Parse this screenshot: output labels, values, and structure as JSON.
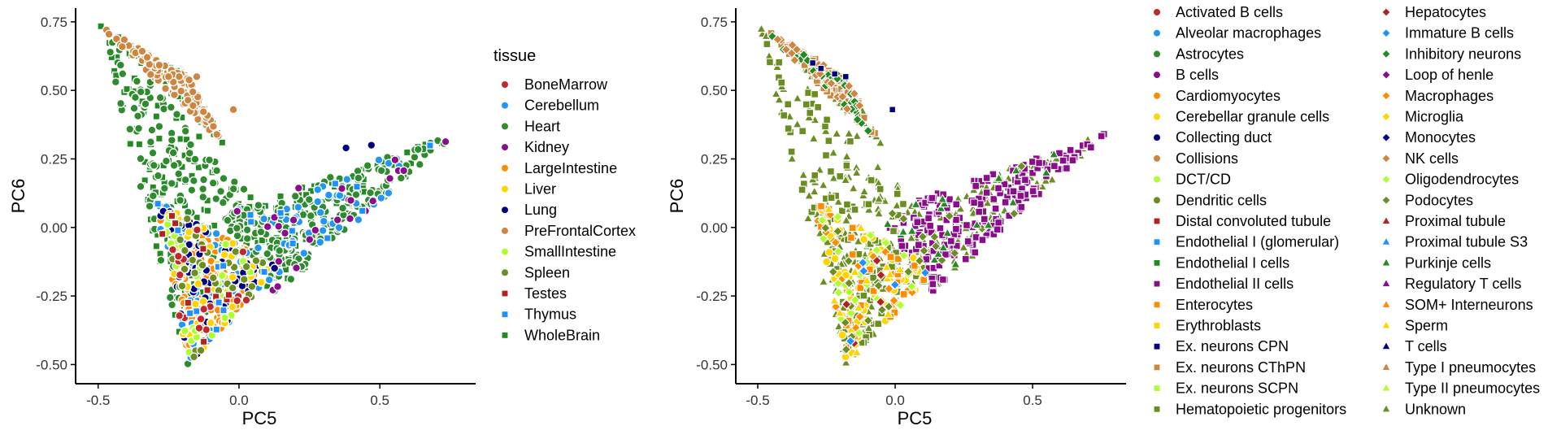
{
  "chart_data": [
    {
      "type": "scatter",
      "xlabel": "PC5",
      "ylabel": "PC6",
      "xlim": [
        -0.58,
        0.84
      ],
      "ylim": [
        -0.57,
        0.8
      ],
      "xticks": [
        "-0.5",
        "0.0",
        "0.5"
      ],
      "xtick_values": [
        -0.5,
        0.0,
        0.5
      ],
      "yticks": [
        "0.75",
        "0.50",
        "0.25",
        "0.00",
        "-0.25",
        "-0.50"
      ],
      "ytick_values": [
        0.75,
        0.5,
        0.25,
        0.0,
        -0.25,
        -0.5
      ],
      "grid": false,
      "legend_title": "tissue",
      "legend_placement": "right",
      "series": [
        {
          "name": "BoneMarrow",
          "shape": "circle",
          "color": "#C1272D"
        },
        {
          "name": "Cerebellum",
          "shape": "circle",
          "color": "#2196F3"
        },
        {
          "name": "Heart",
          "shape": "circle",
          "color": "#2E8B2E"
        },
        {
          "name": "Kidney",
          "shape": "circle",
          "color": "#8B0D8B"
        },
        {
          "name": "LargeIntestine",
          "shape": "circle",
          "color": "#FF8C00"
        },
        {
          "name": "Liver",
          "shape": "circle",
          "color": "#FFD400"
        },
        {
          "name": "Lung",
          "shape": "circle",
          "color": "#000080"
        },
        {
          "name": "PreFrontalCortex",
          "shape": "circle",
          "color": "#CD853F"
        },
        {
          "name": "SmallIntestine",
          "shape": "circle",
          "color": "#ADFF2F"
        },
        {
          "name": "Spleen",
          "shape": "circle",
          "color": "#6B8E23"
        },
        {
          "name": "Testes",
          "shape": "square",
          "color": "#B22222"
        },
        {
          "name": "Thymus",
          "shape": "square",
          "color": "#1E90FF"
        },
        {
          "name": "WholeBrain",
          "shape": "square",
          "color": "#228B22"
        }
      ]
    },
    {
      "type": "scatter",
      "xlabel": "PC5",
      "ylabel": "PC6",
      "xlim": [
        -0.58,
        0.84
      ],
      "ylim": [
        -0.57,
        0.8
      ],
      "xticks": [
        "-0.5",
        "0.0",
        "0.5"
      ],
      "xtick_values": [
        -0.5,
        0.0,
        0.5
      ],
      "yticks": [
        "0.75",
        "0.50",
        "0.25",
        "0.00",
        "-0.25",
        "-0.50"
      ],
      "ytick_values": [
        0.75,
        0.5,
        0.25,
        0.0,
        -0.25,
        -0.5
      ],
      "grid": false,
      "legend_placement": "right",
      "series": [
        {
          "name": "Activated B cells",
          "shape": "circle",
          "color": "#C1272D"
        },
        {
          "name": "Alveolar macrophages",
          "shape": "circle",
          "color": "#2196F3"
        },
        {
          "name": "Astrocytes",
          "shape": "circle",
          "color": "#2E8B2E"
        },
        {
          "name": "B cells",
          "shape": "circle",
          "color": "#8B0D8B"
        },
        {
          "name": "Cardiomyocytes",
          "shape": "circle",
          "color": "#FF8C00"
        },
        {
          "name": "Cerebellar granule cells",
          "shape": "circle",
          "color": "#FFD400"
        },
        {
          "name": "Collecting duct",
          "shape": "circle",
          "color": "#000080"
        },
        {
          "name": "Collisions",
          "shape": "circle",
          "color": "#CD853F"
        },
        {
          "name": "DCT/CD",
          "shape": "circle",
          "color": "#ADFF2F"
        },
        {
          "name": "Dendritic cells",
          "shape": "circle",
          "color": "#6B8E23"
        },
        {
          "name": "Distal convoluted tubule",
          "shape": "square",
          "color": "#B22222"
        },
        {
          "name": "Endothelial I (glomerular)",
          "shape": "square",
          "color": "#1E90FF"
        },
        {
          "name": "Endothelial I cells",
          "shape": "square",
          "color": "#228B22"
        },
        {
          "name": "Endothelial II cells",
          "shape": "square",
          "color": "#8B0D8B"
        },
        {
          "name": "Enterocytes",
          "shape": "square",
          "color": "#FF8C00"
        },
        {
          "name": "Erythroblasts",
          "shape": "square",
          "color": "#FFD400"
        },
        {
          "name": "Ex. neurons CPN",
          "shape": "square",
          "color": "#000080"
        },
        {
          "name": "Ex. neurons CThPN",
          "shape": "square",
          "color": "#CD853F"
        },
        {
          "name": "Ex. neurons SCPN",
          "shape": "square",
          "color": "#ADFF2F"
        },
        {
          "name": "Hematopoietic progenitors",
          "shape": "square",
          "color": "#6B8E23"
        },
        {
          "name": "Hepatocytes",
          "shape": "diamond",
          "color": "#B22222"
        },
        {
          "name": "Immature B cells",
          "shape": "diamond",
          "color": "#1E90FF"
        },
        {
          "name": "Inhibitory neurons",
          "shape": "diamond",
          "color": "#228B22"
        },
        {
          "name": "Loop of henle",
          "shape": "diamond",
          "color": "#8B0D8B"
        },
        {
          "name": "Macrophages",
          "shape": "diamond",
          "color": "#FF8C00"
        },
        {
          "name": "Microglia",
          "shape": "diamond",
          "color": "#FFD400"
        },
        {
          "name": "Monocytes",
          "shape": "diamond",
          "color": "#000080"
        },
        {
          "name": "NK cells",
          "shape": "diamond",
          "color": "#CD853F"
        },
        {
          "name": "Oligodendrocytes",
          "shape": "diamond",
          "color": "#ADFF2F"
        },
        {
          "name": "Podocytes",
          "shape": "diamond",
          "color": "#6B8E23"
        },
        {
          "name": "Proximal tubule",
          "shape": "triangle",
          "color": "#B22222"
        },
        {
          "name": "Proximal tubule S3",
          "shape": "triangle",
          "color": "#1E90FF"
        },
        {
          "name": "Purkinje cells",
          "shape": "triangle",
          "color": "#228B22"
        },
        {
          "name": "Regulatory T cells",
          "shape": "triangle",
          "color": "#8B0D8B"
        },
        {
          "name": "SOM+ Interneurons",
          "shape": "triangle",
          "color": "#FF8C00"
        },
        {
          "name": "Sperm",
          "shape": "triangle",
          "color": "#FFD400"
        },
        {
          "name": "T cells",
          "shape": "triangle",
          "color": "#000080"
        },
        {
          "name": "Type I pneumocytes",
          "shape": "triangle",
          "color": "#CD853F"
        },
        {
          "name": "Type II pneumocytes",
          "shape": "triangle",
          "color": "#ADFF2F"
        },
        {
          "name": "Unknown",
          "shape": "triangle",
          "color": "#6B8E23"
        }
      ]
    }
  ]
}
